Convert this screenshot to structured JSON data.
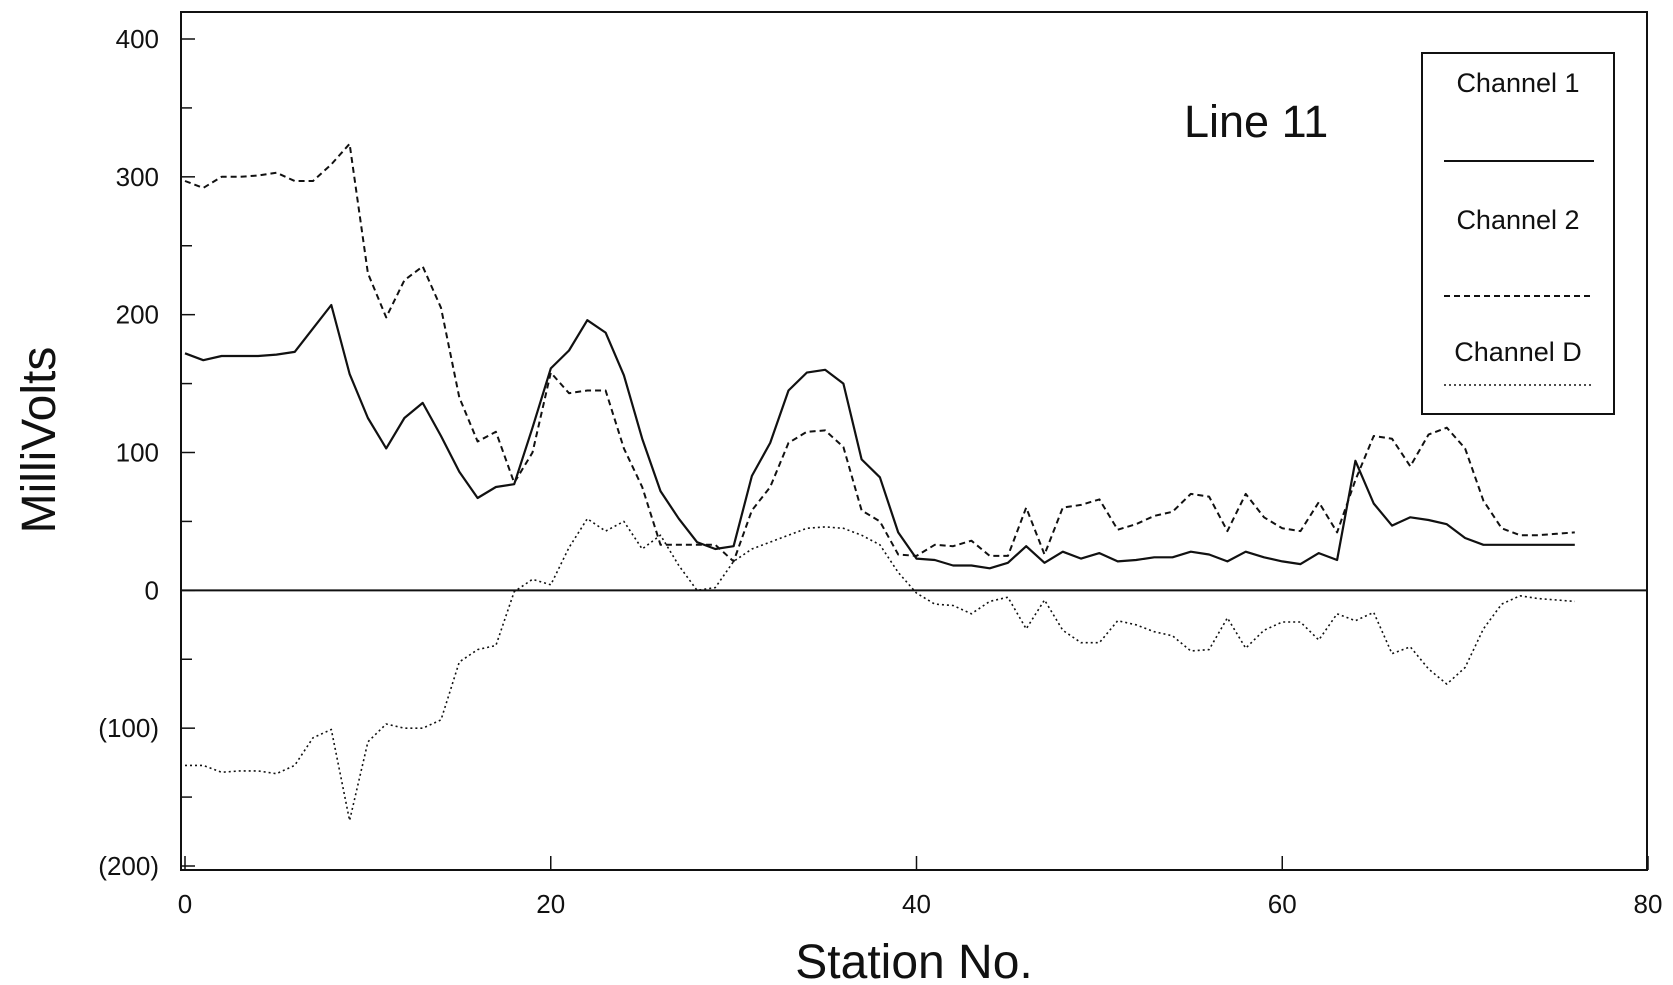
{
  "chart_data": {
    "type": "line",
    "title": "",
    "annotation": "Line 11",
    "xlabel": "Station No.",
    "ylabel": "MilliVolts",
    "xlim": [
      0,
      80
    ],
    "ylim": [
      -200,
      420
    ],
    "x_ticks": [
      0,
      20,
      40,
      60,
      80
    ],
    "x_tick_labels": [
      "0",
      "20",
      "40",
      "60",
      "80"
    ],
    "y_ticks": [
      400,
      300,
      200,
      100,
      0,
      -100,
      -200
    ],
    "y_tick_labels": [
      "400",
      "300",
      "200",
      "100",
      "0",
      "(100)",
      "(200)"
    ],
    "zero_line": true,
    "grid": false,
    "legend_position": "top-right",
    "series": [
      {
        "name": "Channel 1",
        "style": "solid",
        "x": [
          0,
          1,
          2,
          3,
          4,
          5,
          6,
          7,
          8,
          9,
          10,
          11,
          12,
          13,
          14,
          15,
          16,
          17,
          18,
          19,
          20,
          21,
          22,
          23,
          24,
          25,
          26,
          27,
          28,
          29,
          30,
          31,
          32,
          33,
          34,
          35,
          36,
          37,
          38,
          39,
          40,
          41,
          42,
          43,
          44,
          45,
          46,
          47,
          48,
          49,
          50,
          51,
          52,
          53,
          54,
          55,
          56,
          57,
          58,
          59,
          60,
          61,
          62,
          63,
          64,
          65,
          66,
          67,
          68,
          69,
          70,
          71,
          72,
          73,
          74,
          75,
          76
        ],
        "values": [
          172,
          167,
          170,
          170,
          170,
          171,
          173,
          190,
          207,
          157,
          125,
          103,
          125,
          136,
          112,
          86,
          67,
          75,
          77,
          118,
          161,
          174,
          196,
          187,
          156,
          110,
          72,
          52,
          35,
          30,
          32,
          83,
          107,
          145,
          158,
          160,
          150,
          95,
          82,
          42,
          23,
          22,
          18,
          18,
          16,
          20,
          32,
          20,
          28,
          23,
          27,
          21,
          22,
          24,
          24,
          28,
          26,
          21,
          28,
          24,
          21,
          19,
          27,
          22,
          94,
          63,
          47,
          53,
          51,
          48,
          38,
          33,
          33,
          33,
          33,
          33,
          33
        ]
      },
      {
        "name": "Channel 2",
        "style": "dashed",
        "x": [
          0,
          1,
          2,
          3,
          4,
          5,
          6,
          7,
          8,
          9,
          10,
          11,
          12,
          13,
          14,
          15,
          16,
          17,
          18,
          19,
          20,
          21,
          22,
          23,
          24,
          25,
          26,
          27,
          28,
          29,
          30,
          31,
          32,
          33,
          34,
          35,
          36,
          37,
          38,
          39,
          40,
          41,
          42,
          43,
          44,
          45,
          46,
          47,
          48,
          49,
          50,
          51,
          52,
          53,
          54,
          55,
          56,
          57,
          58,
          59,
          60,
          61,
          62,
          63,
          64,
          65,
          66,
          67,
          68,
          69,
          70,
          71,
          72,
          73,
          74,
          75,
          76
        ],
        "values": [
          297,
          292,
          300,
          300,
          301,
          303,
          297,
          297,
          309,
          324,
          230,
          198,
          225,
          235,
          205,
          140,
          108,
          115,
          78,
          100,
          158,
          143,
          145,
          145,
          103,
          75,
          33,
          33,
          33,
          33,
          21,
          58,
          75,
          107,
          115,
          116,
          104,
          58,
          50,
          26,
          25,
          33,
          32,
          36,
          25,
          25,
          60,
          26,
          60,
          62,
          66,
          44,
          48,
          54,
          57,
          70,
          68,
          43,
          70,
          53,
          45,
          43,
          64,
          42,
          80,
          112,
          110,
          90,
          113,
          118,
          103,
          65,
          45,
          40,
          40,
          41,
          42
        ]
      },
      {
        "name": "Channel D",
        "style": "dotted",
        "x": [
          0,
          1,
          2,
          3,
          4,
          5,
          6,
          7,
          8,
          9,
          10,
          11,
          12,
          13,
          14,
          15,
          16,
          17,
          18,
          19,
          20,
          21,
          22,
          23,
          24,
          25,
          26,
          27,
          28,
          29,
          30,
          31,
          32,
          33,
          34,
          35,
          36,
          37,
          38,
          39,
          40,
          41,
          42,
          43,
          44,
          45,
          46,
          47,
          48,
          49,
          50,
          51,
          52,
          53,
          54,
          55,
          56,
          57,
          58,
          59,
          60,
          61,
          62,
          63,
          64,
          65,
          66,
          67,
          68,
          69,
          70,
          71,
          72,
          73,
          74,
          75,
          76
        ],
        "values": [
          -127,
          -127,
          -132,
          -131,
          -131,
          -133,
          -127,
          -107,
          -101,
          -167,
          -110,
          -97,
          -100,
          -100,
          -94,
          -52,
          -43,
          -40,
          -1,
          8,
          4,
          31,
          52,
          43,
          50,
          30,
          40,
          18,
          0,
          2,
          21,
          30,
          35,
          40,
          45,
          46,
          45,
          40,
          33,
          13,
          -2,
          -10,
          -11,
          -17,
          -8,
          -5,
          -28,
          -7,
          -29,
          -38,
          -38,
          -22,
          -25,
          -30,
          -33,
          -44,
          -43,
          -20,
          -42,
          -29,
          -23,
          -23,
          -36,
          -17,
          -22,
          -16,
          -46,
          -41,
          -57,
          -68,
          -56,
          -28,
          -10,
          -4,
          -6,
          -7,
          -8
        ]
      }
    ]
  }
}
